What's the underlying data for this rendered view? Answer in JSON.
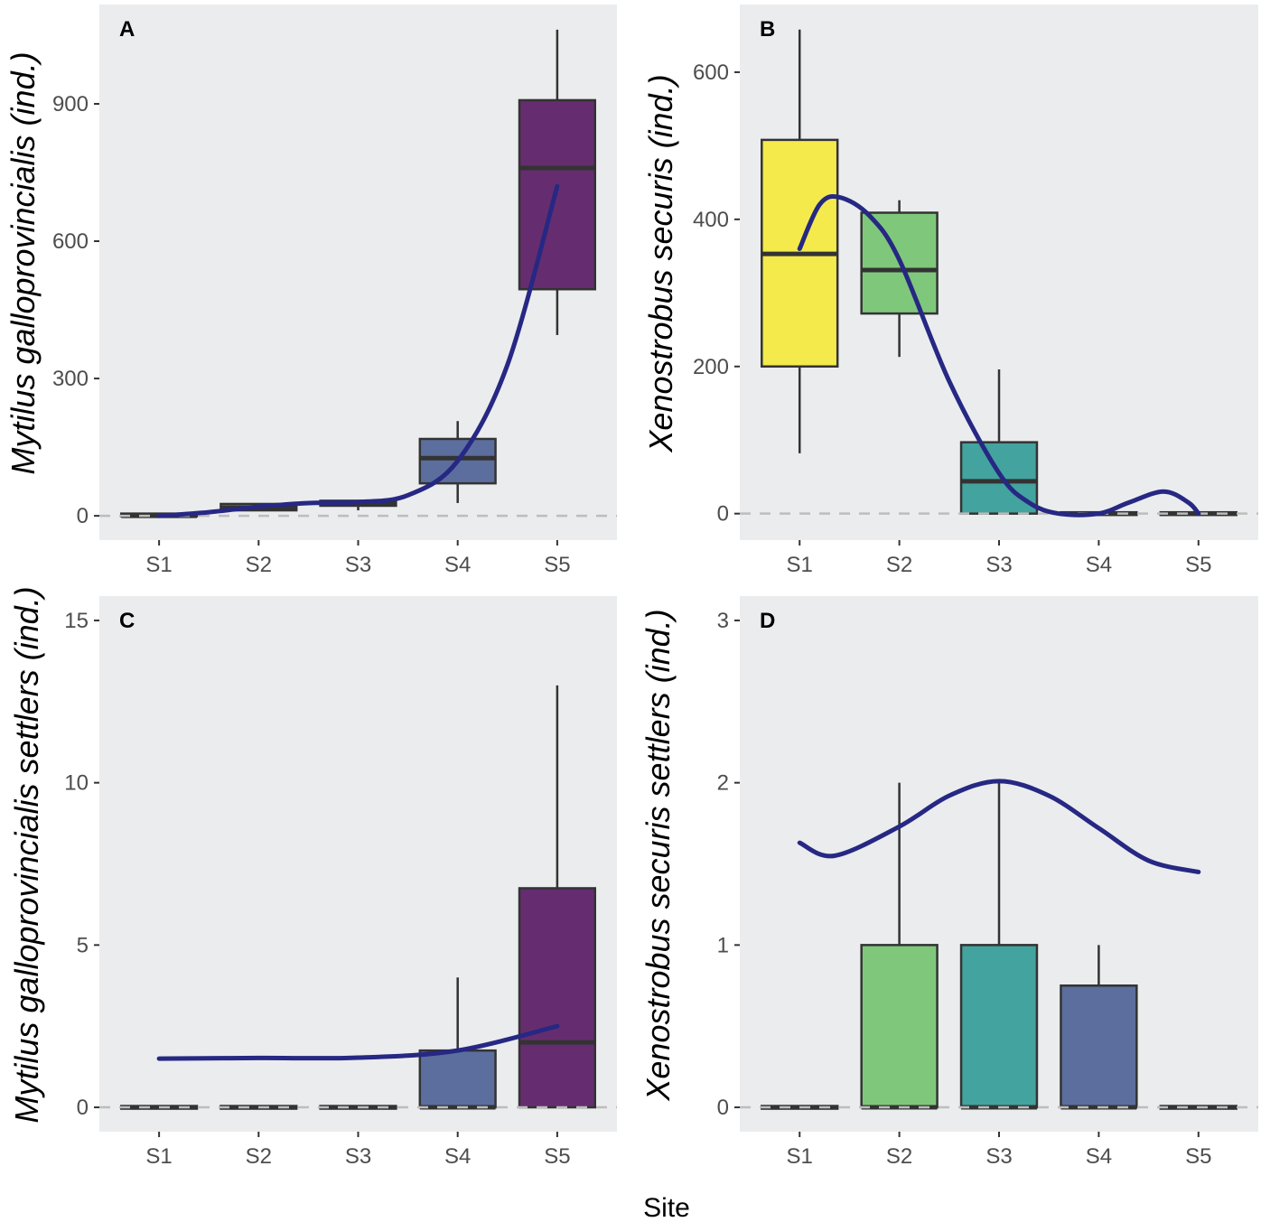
{
  "chart_data": {
    "x_title": "Site",
    "categories": [
      "S1",
      "S2",
      "S3",
      "S4",
      "S5"
    ],
    "category_colors": [
      "#F4EA4C",
      "#7FC87B",
      "#43A39F",
      "#5C6E9E",
      "#652D6F"
    ],
    "smooth_color": "#262883",
    "panels": [
      {
        "type": "box",
        "label": "A",
        "ylabel": "Mytilus galloprovincialis (ind.)",
        "ylim": [
          -53,
          1117
        ],
        "yticks": [
          0,
          300,
          600,
          900
        ],
        "boxes": [
          {
            "q1": 0,
            "median": 0,
            "q3": 2,
            "lo": 0,
            "hi": 2
          },
          {
            "q1": 12,
            "median": 18,
            "q3": 26,
            "lo": 12,
            "hi": 26
          },
          {
            "q1": 22,
            "median": 28,
            "q3": 33,
            "lo": 12,
            "hi": 33
          },
          {
            "q1": 71,
            "median": 126,
            "q3": 168,
            "lo": 28,
            "hi": 207
          },
          {
            "q1": 495,
            "median": 760,
            "q3": 908,
            "lo": 395,
            "hi": 1062
          }
        ],
        "smooth": [
          [
            1,
            0
          ],
          [
            1.5,
            8
          ],
          [
            2,
            20
          ],
          [
            2.5,
            28
          ],
          [
            3,
            30
          ],
          [
            3.5,
            45
          ],
          [
            4,
            120
          ],
          [
            4.5,
            330
          ],
          [
            5,
            720
          ]
        ]
      },
      {
        "type": "box",
        "label": "B",
        "ylabel": "Xenostrobus securis (ind.)",
        "ylim": [
          -36,
          692
        ],
        "yticks": [
          0,
          200,
          400,
          600
        ],
        "boxes": [
          {
            "q1": 200,
            "median": 353,
            "q3": 508,
            "lo": 82,
            "hi": 658
          },
          {
            "q1": 272,
            "median": 331,
            "q3": 409,
            "lo": 213,
            "hi": 426
          },
          {
            "q1": 0,
            "median": 44,
            "q3": 97,
            "lo": 0,
            "hi": 196
          },
          {
            "q1": 0,
            "median": 0,
            "q3": 0,
            "lo": 0,
            "hi": 0
          },
          {
            "q1": 0,
            "median": 0,
            "q3": 0,
            "lo": 0,
            "hi": 0
          }
        ],
        "smooth": [
          [
            1,
            360
          ],
          [
            1.2,
            420
          ],
          [
            1.4,
            430
          ],
          [
            1.7,
            405
          ],
          [
            2,
            345
          ],
          [
            2.5,
            180
          ],
          [
            3,
            55
          ],
          [
            3.3,
            15
          ],
          [
            3.6,
            0
          ],
          [
            4,
            0
          ],
          [
            4.3,
            15
          ],
          [
            4.65,
            30
          ],
          [
            4.9,
            15
          ],
          [
            5,
            0
          ]
        ]
      },
      {
        "type": "box",
        "label": "C",
        "ylabel": "Mytilus galloprovincialis settlers (ind.)",
        "ylim": [
          -0.75,
          15.75
        ],
        "yticks": [
          0,
          5,
          10,
          15
        ],
        "boxes": [
          {
            "q1": 0,
            "median": 0,
            "q3": 0,
            "lo": 0,
            "hi": 0
          },
          {
            "q1": 0,
            "median": 0,
            "q3": 0,
            "lo": 0,
            "hi": 0
          },
          {
            "q1": 0,
            "median": 0,
            "q3": 0,
            "lo": 0,
            "hi": 0
          },
          {
            "q1": 0,
            "median": 0,
            "q3": 1.75,
            "lo": 0,
            "hi": 4
          },
          {
            "q1": 0,
            "median": 2,
            "q3": 6.75,
            "lo": 0,
            "hi": 13
          }
        ],
        "smooth": [
          [
            1,
            1.5
          ],
          [
            2,
            1.52
          ],
          [
            3,
            1.53
          ],
          [
            4,
            1.75
          ],
          [
            5,
            2.5
          ]
        ]
      },
      {
        "type": "box",
        "label": "D",
        "ylabel": "Xenostrobus securis settlers (ind.)",
        "ylim": [
          -0.15,
          3.15
        ],
        "yticks": [
          0,
          1,
          2,
          3
        ],
        "boxes": [
          {
            "q1": 0,
            "median": 0,
            "q3": 0,
            "lo": 0,
            "hi": 0
          },
          {
            "q1": 0,
            "median": 0,
            "q3": 1,
            "lo": 0,
            "hi": 2
          },
          {
            "q1": 0,
            "median": 0,
            "q3": 1,
            "lo": 0,
            "hi": 2
          },
          {
            "q1": 0,
            "median": 0,
            "q3": 0.75,
            "lo": 0,
            "hi": 1
          },
          {
            "q1": 0,
            "median": 0,
            "q3": 0,
            "lo": 0,
            "hi": 0
          }
        ],
        "smooth": [
          [
            1,
            1.63
          ],
          [
            1.35,
            1.55
          ],
          [
            2,
            1.73
          ],
          [
            2.5,
            1.92
          ],
          [
            3,
            2.01
          ],
          [
            3.5,
            1.92
          ],
          [
            4,
            1.72
          ],
          [
            4.5,
            1.52
          ],
          [
            5,
            1.45
          ]
        ]
      }
    ]
  }
}
